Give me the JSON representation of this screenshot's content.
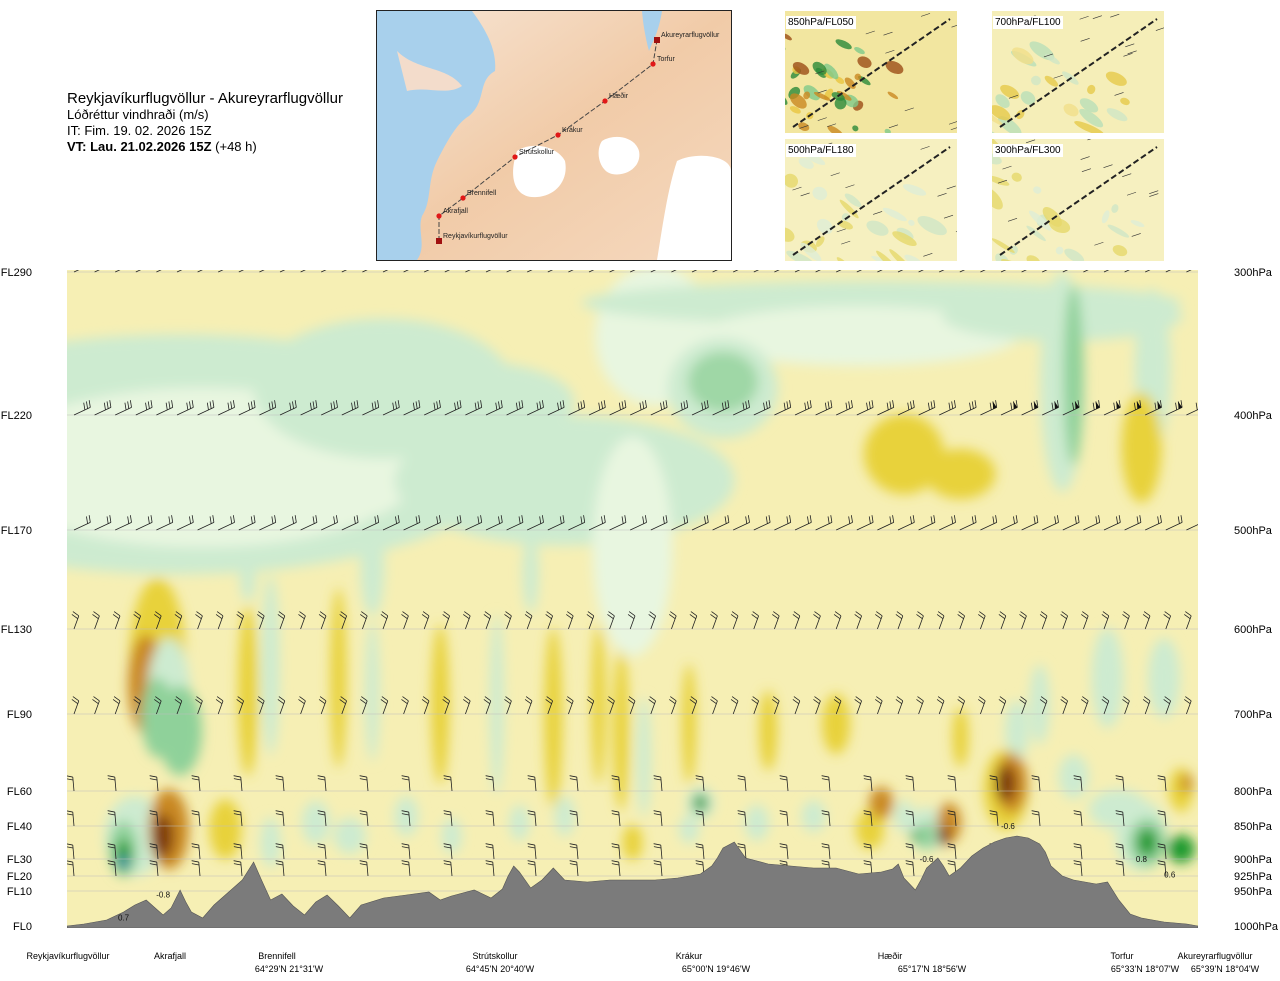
{
  "header": {
    "route_title": "Reykjavíkurflugvöllur - Akureyrarflugvöllur",
    "subtitle": "Lóðréttur vindhraði (m/s)",
    "issue_time": "IT: Fim. 19. 02. 2026 15Z",
    "valid_prefix": "VT: Lau. 21.02.2026 15Z",
    "valid_suffix": "(+48 h)"
  },
  "route_map": {
    "points": [
      "Akureyrarflugvöllur",
      "Torfur",
      "Hæðir",
      "Krákur",
      "Strútskollur",
      "Brennifell",
      "Akrafjall",
      "Reykjavíkurflugvöllur"
    ]
  },
  "insets": [
    {
      "label": "850hPa/FL050"
    },
    {
      "label": "700hPa/FL100"
    },
    {
      "label": "500hPa/FL180"
    },
    {
      "label": "300hPa/FL300"
    }
  ],
  "colors": {
    "strong_down": "#7a3810",
    "mod_down": "#c98820",
    "weak_down": "#e8d23a",
    "slight_down": "#f4ecaa",
    "neutral": "#fdfce8",
    "slight_up": "#e8f6e0",
    "weak_up": "#cdebd0",
    "mod_up": "#8fd19a",
    "strong_up": "#1e9a2e",
    "terrain": "#7b7b7b"
  },
  "chart_data": {
    "type": "heatmap",
    "title": "Lóðréttur vindhraði (m/s)",
    "y_left_labels": [
      "FL290",
      "FL220",
      "FL170",
      "FL130",
      "FL90",
      "FL60",
      "FL40",
      "FL30",
      "FL20",
      "FL10",
      "FL0"
    ],
    "y_right_labels": [
      "300hPa",
      "400hPa",
      "500hPa",
      "600hPa",
      "700hPa",
      "800hPa",
      "850hPa",
      "900hPa",
      "925hPa",
      "950hPa",
      "1000hPa"
    ],
    "levels": [
      {
        "fl": "FL290",
        "hpa": "300hPa"
      },
      {
        "fl": "FL220",
        "hpa": "400hPa"
      },
      {
        "fl": "FL170",
        "hpa": "500hPa"
      },
      {
        "fl": "FL130",
        "hpa": "600hPa"
      },
      {
        "fl": "FL90",
        "hpa": "700hPa"
      },
      {
        "fl": "FL60",
        "hpa": "800hPa"
      },
      {
        "fl": "FL40",
        "hpa": "850hPa"
      },
      {
        "fl": "FL30",
        "hpa": "900hPa"
      },
      {
        "fl": "FL20",
        "hpa": "925hPa"
      },
      {
        "fl": "FL10",
        "hpa": "950hPa"
      },
      {
        "fl": "FL0",
        "hpa": "1000hPa"
      }
    ],
    "x_locations": [
      {
        "name": "Reykjavíkurflugvöllur",
        "coord": "",
        "frac": 0.0
      },
      {
        "name": "Akrafjall",
        "coord": "",
        "frac": 0.09
      },
      {
        "name": "Brennifell",
        "coord": "64°29'N 21°31'W",
        "frac": 0.19
      },
      {
        "name": "Strútskollur",
        "coord": "64°45'N 20°40'W",
        "frac": 0.38
      },
      {
        "name": "Krákur",
        "coord": "65°00'N 19°46'W",
        "frac": 0.56
      },
      {
        "name": "Hæðir",
        "coord": "65°17'N 18°56'W",
        "frac": 0.74
      },
      {
        "name": "Torfur",
        "coord": "65°33'N 18°07'W",
        "frac": 0.935
      },
      {
        "name": "Akureyrarflugvöllur",
        "coord": "65°39'N 18°04'W",
        "frac": 1.0
      }
    ],
    "annotations": [
      {
        "text": "0.7",
        "x_frac": 0.05,
        "level": 9.75
      },
      {
        "text": "-0.8",
        "x_frac": 0.085,
        "level": 9.1
      },
      {
        "text": "-0.6",
        "x_frac": 0.832,
        "level": 6.0
      },
      {
        "text": "-0.6",
        "x_frac": 0.76,
        "level": 7.0
      },
      {
        "text": "0.8",
        "x_frac": 0.95,
        "level": 7.0
      },
      {
        "text": "0.6",
        "x_frac": 0.975,
        "level": 7.9
      }
    ],
    "vertical_wind_unit": "m/s"
  }
}
